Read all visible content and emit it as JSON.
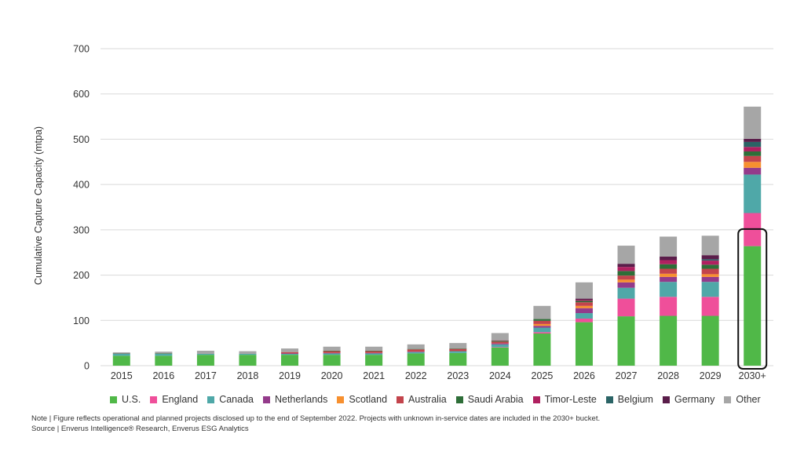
{
  "chart_data": {
    "type": "bar",
    "stacked": true,
    "title": "",
    "xlabel": "",
    "ylabel": "Cumulative Capture Capacity (mtpa)",
    "ylim": [
      0,
      700
    ],
    "yticks": [
      0,
      100,
      200,
      300,
      400,
      500,
      600,
      700
    ],
    "grid": true,
    "legend_position": "bottom",
    "categories": [
      "2015",
      "2016",
      "2017",
      "2018",
      "2019",
      "2020",
      "2021",
      "2022",
      "2023",
      "2024",
      "2025",
      "2026",
      "2027",
      "2028",
      "2029",
      "2030+"
    ],
    "highlighted_category": "2030+",
    "series": [
      {
        "name": "U.S.",
        "color": "#50b848",
        "values": [
          22,
          22,
          24,
          24,
          24,
          24,
          24,
          27,
          28,
          40,
          71,
          96,
          109,
          110,
          110,
          264
        ]
      },
      {
        "name": "England",
        "color": "#ef4f9a",
        "values": [
          0,
          0,
          0,
          0,
          0,
          0,
          0,
          0,
          0,
          1,
          3,
          8,
          39,
          42,
          42,
          73
        ]
      },
      {
        "name": "Canada",
        "color": "#4fa8a8",
        "values": [
          4,
          4,
          2,
          2,
          2,
          3,
          3,
          3,
          4,
          6,
          10,
          12,
          24,
          33,
          33,
          85
        ]
      },
      {
        "name": "Netherlands",
        "color": "#943b8b",
        "values": [
          0.5,
          0,
          0,
          0,
          1,
          1,
          1,
          1,
          0,
          2,
          4,
          11,
          12,
          11,
          11,
          15
        ]
      },
      {
        "name": "Scotland",
        "color": "#f7902f",
        "values": [
          0,
          0,
          0,
          0,
          0,
          0,
          0,
          0,
          0,
          0,
          4,
          5,
          6,
          7,
          6,
          13
        ]
      },
      {
        "name": "Australia",
        "color": "#c3444c",
        "values": [
          0,
          0,
          0,
          0,
          3,
          4,
          4,
          5,
          5,
          4,
          7,
          8,
          9,
          11,
          12,
          13
        ]
      },
      {
        "name": "Saudi Arabia",
        "color": "#2e6e38",
        "values": [
          1,
          1,
          0,
          0,
          0,
          1,
          1,
          1,
          1,
          2,
          4,
          3,
          10,
          10,
          9,
          10
        ]
      },
      {
        "name": "Timor-Leste",
        "color": "#b02060",
        "values": [
          0,
          0,
          0,
          0,
          0,
          0,
          0,
          0,
          0,
          1,
          0,
          2,
          9,
          9,
          9,
          10
        ]
      },
      {
        "name": "Belgium",
        "color": "#2b6466",
        "values": [
          0,
          0,
          0,
          0,
          0,
          0,
          0,
          0,
          0,
          0,
          0,
          0,
          0,
          0,
          3,
          11
        ]
      },
      {
        "name": "Germany",
        "color": "#5a1d4a",
        "values": [
          0,
          0,
          0,
          0,
          0,
          0,
          0,
          0,
          0,
          0,
          0,
          3,
          7,
          8,
          9,
          7
        ]
      },
      {
        "name": "Other",
        "color": "#a6a6a6",
        "values": [
          2,
          4,
          7,
          6,
          8,
          9,
          9,
          10,
          12,
          16,
          29,
          36,
          40,
          44,
          43,
          71
        ]
      }
    ]
  },
  "notes": {
    "note": "Note | Figure reflects operational and planned projects disclosed up to the end of September 2022. Projects with unknown in-service dates are included in the 2030+ bucket.",
    "source": "Source | Enverus Intelligence® Research, Enverus ESG Analytics"
  }
}
